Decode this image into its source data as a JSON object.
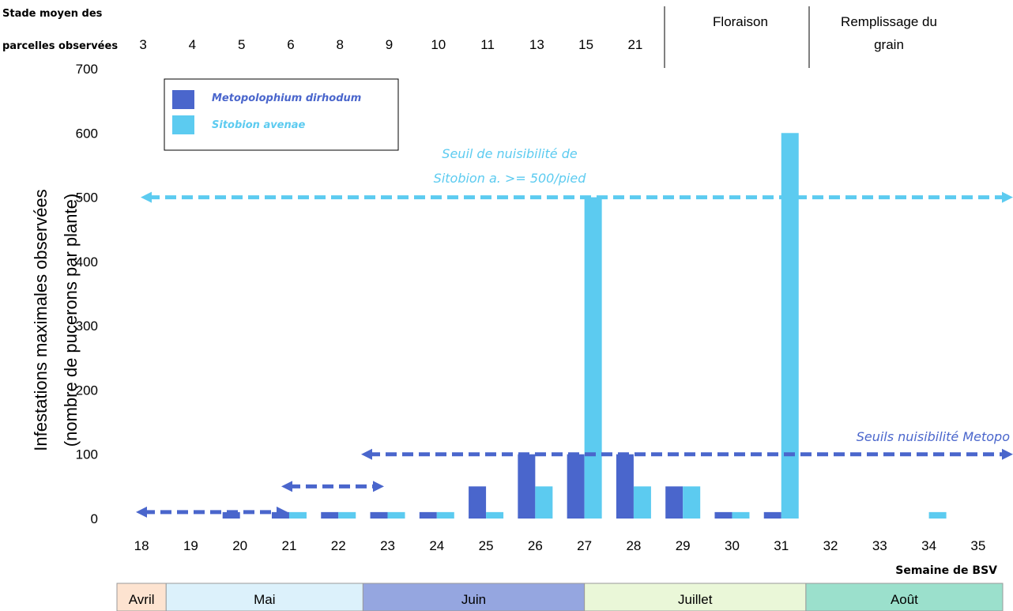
{
  "chart_data": {
    "type": "bar",
    "x": [
      18,
      19,
      20,
      21,
      22,
      23,
      24,
      25,
      26,
      27,
      28,
      29,
      30,
      31,
      32,
      33,
      34,
      35
    ],
    "series": [
      {
        "name": "Metopolophium dirhodum",
        "color": "#4a66cc",
        "values": [
          0,
          0,
          10,
          10,
          10,
          10,
          10,
          50,
          100,
          100,
          100,
          50,
          10,
          10,
          0,
          0,
          0,
          0
        ]
      },
      {
        "name": "Sitobion avenae",
        "color": "#5ccbf0",
        "values": [
          0,
          0,
          0,
          10,
          10,
          10,
          10,
          10,
          50,
          500,
          50,
          50,
          10,
          600,
          0,
          0,
          10,
          0
        ]
      }
    ],
    "ylabel_line1": "Infestations maximales observées",
    "ylabel_line2": "(nombre de pucerons par plante)",
    "xlabel": "Semaine de BSV",
    "ylim": [
      0,
      700
    ],
    "yticks": [
      0,
      100,
      200,
      300,
      400,
      500,
      600,
      700
    ],
    "grid": false,
    "legend_placement": "top-left"
  },
  "stage_row": {
    "title_line1": "Stade moyen des",
    "title_line2": "parcelles observées",
    "stages": [
      "3",
      "4",
      "5",
      "6",
      "8",
      "9",
      "10",
      "11",
      "13",
      "15",
      "21"
    ],
    "floraison": "Floraison",
    "remplissage_line1": "Remplissage du",
    "remplissage_line2": "grain"
  },
  "thresholds": {
    "sitobion": {
      "value": 500,
      "label_line1": "Seuil de nuisibilité de",
      "label_line2": "Sitobion a. >= 500/pied",
      "color": "#5ccbf0"
    },
    "metopo": {
      "value": 100,
      "label": "Seuils nuisibilité Metopo",
      "color": "#4a66cc"
    }
  },
  "months": [
    {
      "label": "Avril",
      "from": 18,
      "to": 19,
      "color": "#fde3d0"
    },
    {
      "label": "Mai",
      "from": 19,
      "to": 23,
      "color": "#dcf1fb"
    },
    {
      "label": "Juin",
      "from": 23,
      "to": 27.5,
      "color": "#95a6e0"
    },
    {
      "label": "Juillet",
      "from": 27.5,
      "to": 32,
      "color": "#eaf7d8"
    },
    {
      "label": "Août",
      "from": 32,
      "to": 36,
      "color": "#9be0cc"
    }
  ]
}
